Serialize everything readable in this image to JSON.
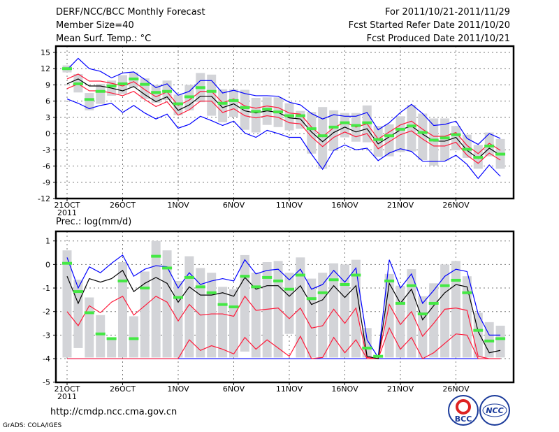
{
  "header": {
    "title": "DERF/NCC/BCC Monthly Forecast",
    "member_size": "Member Size=40",
    "variable": "Mean Surf. Temp.: °C",
    "period": "For 2011/10/21-2011/11/29",
    "started": "Fcst Started Refer Date 2011/10/20",
    "produced": "Fcst Produced Date 2011/10/21"
  },
  "footer": {
    "url": "http://cmdp.ncc.cma.gov.cn",
    "grads": "GrADS: COLA/IGES",
    "logo1": "BCC",
    "logo2": "NCC"
  },
  "colors": {
    "obs": "#44e844",
    "box": "#d3d4d8",
    "mean": "#000000",
    "spread": "#ff1a3a",
    "extreme": "#0000ff"
  },
  "chart_data": [
    {
      "type": "line",
      "title": "Mean Surf. Temp.: °C",
      "ylim": [
        -12,
        15
      ],
      "yticks": [
        15,
        12,
        9,
        6,
        3,
        0,
        -3,
        -6,
        -9,
        -12
      ],
      "xlabels": [
        "21OCT",
        "26OCT",
        "1NOV",
        "6NOV",
        "11NOV",
        "16NOV",
        "21NOV",
        "26NOV"
      ],
      "xlabel_year": "2011",
      "start": "2011-10-21",
      "days": 40,
      "mean": [
        9.2,
        10.1,
        8.8,
        8.8,
        8.4,
        7.9,
        8.7,
        7.2,
        5.9,
        6.8,
        4.3,
        5.3,
        6.9,
        6.9,
        4.8,
        5.5,
        4.2,
        3.8,
        4.2,
        3.9,
        2.9,
        2.7,
        0.3,
        -1.5,
        0.2,
        1.2,
        0.3,
        0.9,
        -1.9,
        -0.6,
        0.7,
        1.4,
        -0.1,
        -1.4,
        -1.4,
        -0.7,
        -3.1,
        -4.6,
        -2.7,
        -4.0
      ],
      "upper": [
        10.1,
        11.0,
        9.7,
        9.7,
        9.3,
        8.8,
        9.6,
        8.1,
        6.8,
        7.7,
        5.2,
        6.2,
        7.8,
        7.8,
        5.7,
        6.4,
        5.1,
        4.7,
        5.1,
        4.8,
        3.8,
        3.6,
        1.2,
        -0.6,
        1.1,
        2.1,
        1.2,
        1.8,
        -1.0,
        0.3,
        1.6,
        2.3,
        0.8,
        -0.5,
        -0.5,
        0.2,
        -2.2,
        -3.7,
        -1.8,
        -3.1
      ],
      "lower": [
        8.3,
        9.2,
        7.9,
        7.9,
        7.5,
        7.0,
        7.8,
        6.3,
        5.0,
        5.9,
        3.4,
        4.4,
        6.0,
        6.0,
        3.9,
        4.6,
        3.3,
        2.9,
        3.3,
        3.0,
        2.0,
        1.8,
        -0.6,
        -2.4,
        -0.7,
        0.3,
        -0.6,
        0.0,
        -2.8,
        -1.5,
        -0.2,
        0.5,
        -1.0,
        -2.3,
        -2.3,
        -1.6,
        -4.0,
        -5.5,
        -3.6,
        -4.9
      ],
      "max": [
        11.8,
        13.9,
        12,
        11.5,
        10.3,
        11.2,
        11.4,
        10,
        8.5,
        9.2,
        7.1,
        7.8,
        9.8,
        9.8,
        7.5,
        8,
        7.4,
        7,
        7,
        6.9,
        5.8,
        5.3,
        3.7,
        2.7,
        3.5,
        3.2,
        3.2,
        3.9,
        0.7,
        2.0,
        3.9,
        5.4,
        3.7,
        1.5,
        1.7,
        2.3,
        -0.9,
        -2.0,
        0.0,
        -0.9
      ],
      "min": [
        6.4,
        5.6,
        4.6,
        5.2,
        5.6,
        3.9,
        5.2,
        3.8,
        2.7,
        3.6,
        1.0,
        1.7,
        3.2,
        2.4,
        1.5,
        2.3,
        0.1,
        -0.7,
        0.6,
        0.0,
        -0.7,
        -0.7,
        -3.8,
        -6.6,
        -3.1,
        -2.1,
        -3.0,
        -2.7,
        -5.0,
        -3.6,
        -2.8,
        -3.3,
        -5.1,
        -5.1,
        -5.1,
        -4.0,
        -5.7,
        -8.3,
        -5.8,
        -7.9
      ],
      "obs": [
        12.0,
        9.2,
        6.3,
        7.8,
        8.8,
        9.2,
        10.1,
        9.1,
        7.6,
        7.8,
        5.5,
        6.8,
        8.5,
        7.8,
        5.6,
        6.1,
        4.8,
        4.1,
        4.5,
        4.0,
        3.3,
        3.3,
        0.9,
        -0.4,
        1.2,
        2.0,
        1.5,
        2.0,
        -1.1,
        -0.4,
        0.8,
        1.4,
        0.2,
        -1.2,
        -0.8,
        -0.2,
        -2.9,
        -4.4,
        -2.3,
        -3.8
      ],
      "box_low": [
        11.3,
        7.6,
        4.3,
        5.5,
        7.0,
        7.3,
        8.5,
        6.4,
        5.7,
        6.2,
        3.4,
        4.3,
        5.8,
        3.3,
        2.1,
        3.1,
        0.7,
        0.2,
        1.6,
        1.2,
        0.6,
        0.9,
        -3.7,
        -6.5,
        -3.2,
        -0.7,
        -1.5,
        -1.6,
        -4.3,
        -4.2,
        -3.4,
        -3.3,
        -4.9,
        -5.9,
        -5.0,
        -3.1,
        -4.5,
        -6.5,
        -4.2,
        -6.5
      ],
      "box_high": [
        12.6,
        11.0,
        7.5,
        9.2,
        9.8,
        10.8,
        11.3,
        10.2,
        9.0,
        9.8,
        7.2,
        9.0,
        11.2,
        10.9,
        8.2,
        8.2,
        8.1,
        6.6,
        6.7,
        6.7,
        5.6,
        4.2,
        4.0,
        4.9,
        4.3,
        3.8,
        3.8,
        5.2,
        1.4,
        1.7,
        3.2,
        5.3,
        3.7,
        2.8,
        2.8,
        1.4,
        -0.2,
        -2.1,
        0.2,
        -1.0
      ]
    },
    {
      "type": "line",
      "title": "Prec.: log(mm/d)",
      "ylim": [
        -5,
        1
      ],
      "yticks": [
        1,
        0,
        -1,
        -2,
        -3,
        -4,
        -5
      ],
      "xlabels": [
        "21OCT",
        "26OCT",
        "1NOV",
        "6NOV",
        "11NOV",
        "16NOV",
        "21NOV",
        "26NOV"
      ],
      "xlabel_year": "2011",
      "start": "2011-10-21",
      "days": 40,
      "mean": [
        -0.5,
        -1.65,
        -0.6,
        -0.75,
        -0.6,
        -0.25,
        -1.15,
        -0.8,
        -0.55,
        -0.8,
        -1.6,
        -0.95,
        -1.3,
        -1.3,
        -1.2,
        -1.35,
        -0.55,
        -1.05,
        -0.9,
        -0.9,
        -1.35,
        -0.9,
        -1.7,
        -1.5,
        -0.9,
        -1.4,
        -0.9,
        -3.9,
        -4.0,
        -0.8,
        -1.65,
        -1.05,
        -2.35,
        -1.75,
        -1.2,
        -0.85,
        -0.95,
        -2.85,
        -3.75,
        -3.65
      ],
      "upper": [
        -2.0,
        -2.6,
        -1.75,
        -2.05,
        -1.6,
        -1.35,
        -2.15,
        -1.75,
        -1.35,
        -1.6,
        -2.4,
        -1.7,
        -2.15,
        -2.1,
        -2.1,
        -2.2,
        -1.35,
        -1.95,
        -1.9,
        -1.85,
        -2.3,
        -1.85,
        -2.7,
        -2.6,
        -1.9,
        -2.5,
        -1.85,
        -3.95,
        -4.0,
        -1.7,
        -2.55,
        -2.0,
        -3.05,
        -2.5,
        -1.9,
        -1.85,
        -1.95,
        -3.9,
        -4.0,
        -4.0
      ],
      "lower": [
        -4,
        -4,
        -4,
        -4,
        -4,
        -4,
        -4,
        -4,
        -4,
        -4,
        -4,
        -3.2,
        -3.65,
        -3.45,
        -3.6,
        -3.8,
        -3.1,
        -3.6,
        -3.2,
        -3.55,
        -3.9,
        -3.05,
        -4,
        -3.95,
        -3.1,
        -3.75,
        -3.2,
        -4,
        -4,
        -2.7,
        -3.6,
        -3.1,
        -4,
        -3.75,
        -3.35,
        -2.95,
        -3.0,
        -4,
        -4,
        -4
      ],
      "max": [
        0.3,
        -1.0,
        -0.1,
        -0.35,
        0.05,
        0.4,
        -0.5,
        -0.2,
        -0.05,
        -0.1,
        -1.0,
        -0.35,
        -0.85,
        -0.7,
        -0.6,
        -0.7,
        0.2,
        -0.4,
        -0.25,
        -0.2,
        -0.65,
        -0.2,
        -1.05,
        -0.85,
        -0.25,
        -0.75,
        -0.15,
        -3.2,
        -3.95,
        0.2,
        -1.0,
        -0.4,
        -1.65,
        -1.1,
        -0.5,
        -0.2,
        -0.3,
        -2.1,
        -3.0,
        -3.0
      ],
      "min": [
        -4,
        -4,
        -4,
        -4,
        -4,
        -4,
        -4,
        -4,
        -4,
        -4,
        -4,
        -4,
        -4,
        -4,
        -4,
        -4,
        -4,
        -4,
        -4,
        -4,
        -4,
        -4,
        -4,
        -4,
        -4,
        -4,
        -4,
        -4,
        -4,
        -4,
        -4,
        -4,
        -4,
        -4,
        -4,
        -4,
        -4,
        -4,
        -4,
        -4
      ],
      "obs": [
        0.05,
        -1.15,
        -2.05,
        -2.95,
        -3.15,
        -0.7,
        -3.15,
        -1.0,
        0.35,
        -0.15,
        -1.4,
        -0.55,
        -0.95,
        -1.2,
        -1.7,
        -1.8,
        -0.5,
        -0.95,
        -0.55,
        -0.7,
        -1.05,
        -0.45,
        -1.45,
        -1.2,
        -0.65,
        -0.85,
        -0.45,
        -3.55,
        -3.9,
        -0.7,
        -1.65,
        -0.9,
        -2.1,
        -1.65,
        -0.9,
        -0.67,
        -1.2,
        -2.8,
        -3.25,
        -3.15
      ],
      "box_low": [
        -3.95,
        -3.55,
        -3.95,
        -3.95,
        -3.95,
        -3.95,
        -3.95,
        -3.95,
        -3.95,
        -3.95,
        -3.95,
        -3.95,
        -3.95,
        -3.95,
        -3.95,
        -3.95,
        -3.7,
        -3.95,
        -3.95,
        -3.95,
        -2.95,
        -3.95,
        -3.95,
        -3.95,
        -3.95,
        -3.95,
        -3.95,
        -3.95,
        -3.95,
        -3.95,
        -3.95,
        -3.95,
        -3.95,
        -3.95,
        -3.95,
        -3.95,
        -3.95,
        -3.95,
        -3.95,
        -3.95
      ],
      "box_high": [
        0.6,
        -0.65,
        -1.4,
        -2.15,
        -3.15,
        0.1,
        -2.2,
        -0.3,
        1.0,
        0.6,
        -0.7,
        0.35,
        -0.15,
        -0.35,
        -0.95,
        -1.05,
        0.4,
        -0.35,
        0.1,
        0.15,
        -0.35,
        0.3,
        -0.6,
        -0.35,
        0.05,
        0.0,
        0.2,
        -2.7,
        -3.9,
        -0.4,
        -0.9,
        -0.2,
        -1.35,
        -0.8,
        0.0,
        0.15,
        -0.5,
        -2.05,
        -2.45,
        -2.6
      ]
    }
  ]
}
